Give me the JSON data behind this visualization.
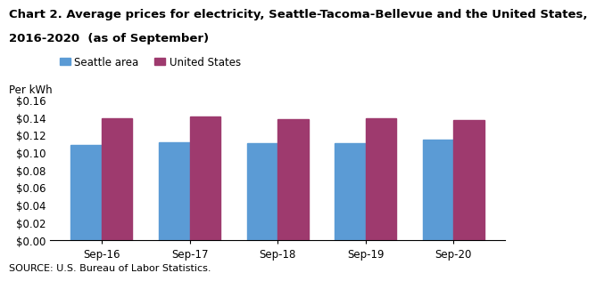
{
  "title_line1": "Chart 2. Average prices for electricity, Seattle-Tacoma-Bellevue and the United States,",
  "title_line2": "2016-2020  (as of September)",
  "ylabel": "Per kWh",
  "source": "SOURCE: U.S. Bureau of Labor Statistics.",
  "categories": [
    "Sep-16",
    "Sep-17",
    "Sep-18",
    "Sep-19",
    "Sep-20"
  ],
  "seattle_values": [
    0.108,
    0.111,
    0.11,
    0.11,
    0.114
  ],
  "us_values": [
    0.139,
    0.141,
    0.138,
    0.139,
    0.137
  ],
  "seattle_color": "#5B9BD5",
  "us_color": "#9E3A6E",
  "ylim": [
    0,
    0.16
  ],
  "yticks": [
    0.0,
    0.02,
    0.04,
    0.06,
    0.08,
    0.1,
    0.12,
    0.14,
    0.16
  ],
  "legend_seattle": "Seattle area",
  "legend_us": "United States",
  "bar_width": 0.35,
  "title_fontsize": 9.5,
  "axis_fontsize": 8.5,
  "tick_fontsize": 8.5,
  "legend_fontsize": 8.5,
  "source_fontsize": 8,
  "background_color": "#ffffff"
}
